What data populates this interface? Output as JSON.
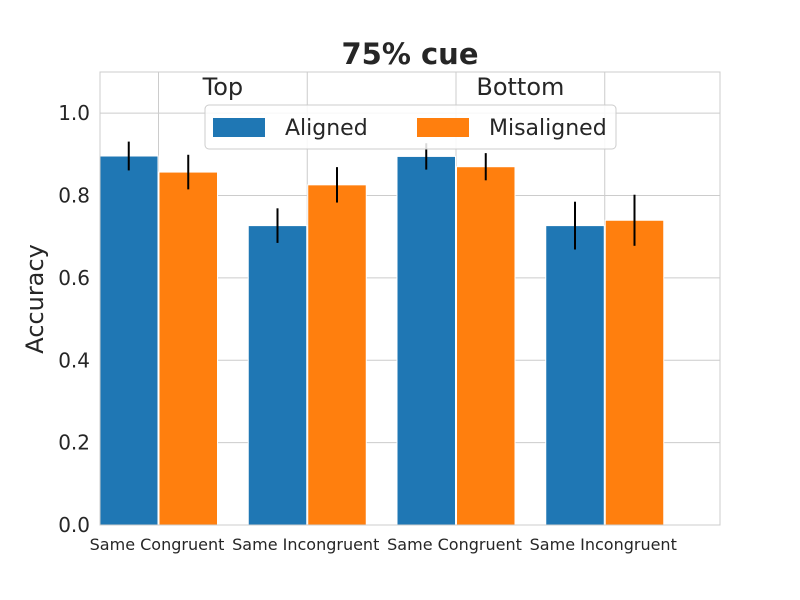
{
  "chart_data": {
    "type": "bar",
    "title": "75% cue",
    "ylabel": "Accuracy",
    "xlabel": "",
    "ylim": [
      0,
      1.1
    ],
    "yticks": [
      "0.0",
      "0.2",
      "0.4",
      "0.6",
      "0.8",
      "1.0"
    ],
    "grid": true,
    "legend_position": "top-center",
    "categories": [
      "Same Congruent",
      "Same Incongruent",
      "Same Congruent",
      "Same Incongruent"
    ],
    "groups": [
      {
        "label": "Top",
        "categories": [
          0,
          1
        ]
      },
      {
        "label": "Bottom",
        "categories": [
          2,
          3
        ]
      }
    ],
    "series": [
      {
        "name": "Aligned",
        "color": "#1f77b4",
        "values": [
          0.896,
          0.727,
          0.895,
          0.727
        ],
        "errors": [
          0.035,
          0.042,
          0.032,
          0.058
        ]
      },
      {
        "name": "Misaligned",
        "color": "#ff7f0e",
        "values": [
          0.857,
          0.826,
          0.87,
          0.74
        ],
        "errors": [
          0.042,
          0.043,
          0.033,
          0.062
        ]
      }
    ]
  }
}
